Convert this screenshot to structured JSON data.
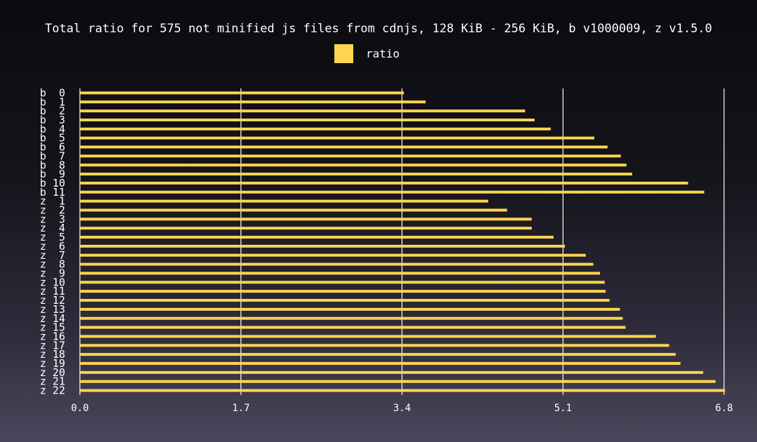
{
  "chart_data": {
    "type": "bar",
    "orientation": "horizontal",
    "title": "Total ratio for 575 not minified js files from cdnjs, 128 KiB - 256 KiB, b v1000009, z v1.5.0",
    "legend": {
      "placement": "top-center",
      "entries": [
        "ratio"
      ]
    },
    "bar_color": "#ffd54f",
    "grid": true,
    "xlim": [
      0,
      6.8
    ],
    "xticks": [
      "0.0",
      "1.7",
      "3.4",
      "5.1",
      "6.8"
    ],
    "xtick_values": [
      0,
      1.7,
      3.4,
      5.1,
      6.8
    ],
    "categories": [
      "b  0",
      "b  1",
      "b  2",
      "b  3",
      "b  4",
      "b  5",
      "b  6",
      "b  7",
      "b  8",
      "b  9",
      "b 10",
      "b 11",
      "z  1",
      "z  2",
      "z  3",
      "z  4",
      "z  5",
      "z  6",
      "z  7",
      "z  8",
      "z  9",
      "z 10",
      "z 11",
      "z 12",
      "z 13",
      "z 14",
      "z 15",
      "z 16",
      "z 17",
      "z 18",
      "z 19",
      "z 20",
      "z 21",
      "z 22"
    ],
    "series": [
      {
        "name": "ratio",
        "values": [
          3.42,
          3.65,
          4.7,
          4.8,
          4.97,
          5.43,
          5.57,
          5.71,
          5.77,
          5.83,
          6.42,
          6.59,
          4.31,
          4.51,
          4.77,
          4.77,
          5.0,
          5.12,
          5.34,
          5.42,
          5.49,
          5.54,
          5.55,
          5.59,
          5.7,
          5.73,
          5.76,
          6.08,
          6.22,
          6.29,
          6.34,
          6.58,
          6.71,
          6.81
        ]
      }
    ]
  }
}
